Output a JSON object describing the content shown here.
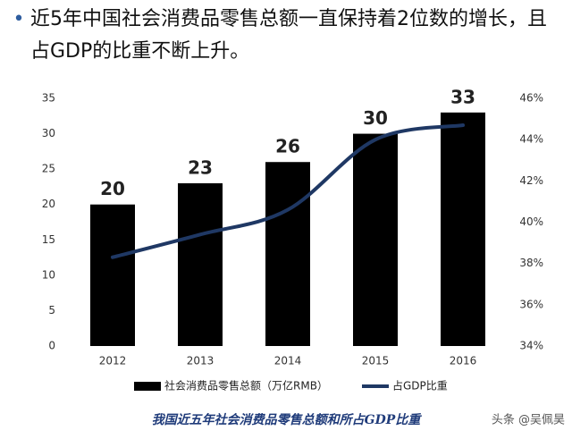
{
  "chart_data": {
    "type": "combo",
    "title": "近5年中国社会消费品零售总额一直保持着2位数的增长，且占GDP的比重不断上升。",
    "categories": [
      "2012",
      "2013",
      "2014",
      "2015",
      "2016"
    ],
    "series": [
      {
        "name": "社会消费品零售总额（万亿RMB）",
        "type": "bar",
        "color": "#000000",
        "values": [
          20,
          23,
          26,
          30,
          33
        ]
      },
      {
        "name": "占GDP比重",
        "type": "line",
        "axis": "y2",
        "color": "#1f3864",
        "values": [
          38.3,
          39.4,
          40.6,
          44.0,
          44.7
        ]
      }
    ],
    "ylim": [
      0,
      35
    ],
    "yticks": [
      0,
      5,
      10,
      15,
      20,
      25,
      30,
      35
    ],
    "y2lim": [
      34,
      46
    ],
    "y2ticks": [
      {
        "value": 34,
        "label": "34%"
      },
      {
        "value": 36,
        "label": "36%"
      },
      {
        "value": 38,
        "label": "38%"
      },
      {
        "value": 40,
        "label": "40%"
      },
      {
        "value": 42,
        "label": "42%"
      },
      {
        "value": 44,
        "label": "44%"
      },
      {
        "value": 46,
        "label": "46%"
      }
    ],
    "grid": false,
    "legend": "bottom",
    "caption": "我国近五年社会消费品零售总额和所占GDP比重",
    "watermark": "头条 @吴佩昊"
  }
}
